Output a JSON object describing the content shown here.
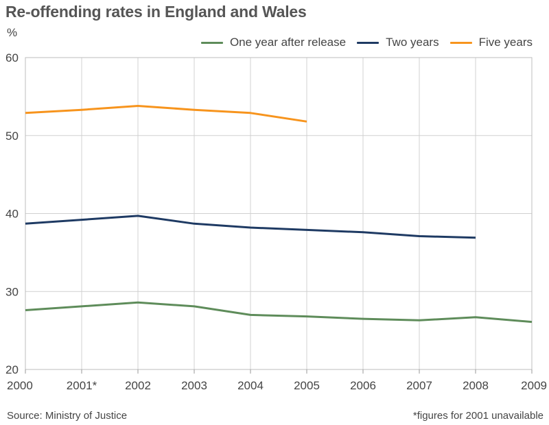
{
  "chart_data": {
    "type": "line",
    "title": "Re-offending rates in England and Wales",
    "ylabel": "%",
    "xlabel": "",
    "x": [
      "2000",
      "2001*",
      "2002",
      "2003",
      "2004",
      "2005",
      "2006",
      "2007",
      "2008",
      "2009"
    ],
    "ylim": [
      20,
      60
    ],
    "yticks": [
      20,
      30,
      40,
      50,
      60
    ],
    "grid": true,
    "legend_position": "top-right",
    "series": [
      {
        "name": "One year after release",
        "color": "#5e8c5a",
        "values": [
          27.6,
          28.1,
          28.6,
          28.1,
          27.0,
          26.8,
          26.5,
          26.3,
          26.7,
          26.1
        ]
      },
      {
        "name": "Two years",
        "color": "#1e3a63",
        "values": [
          38.7,
          39.2,
          39.7,
          38.7,
          38.2,
          37.9,
          37.6,
          37.1,
          36.9,
          null
        ]
      },
      {
        "name": "Five years",
        "color": "#f7941d",
        "values": [
          52.9,
          53.3,
          53.8,
          53.3,
          52.9,
          51.8,
          null,
          null,
          null,
          null
        ]
      }
    ]
  },
  "footer": {
    "source": "Source: Ministry of Justice",
    "note": "*figures for 2001 unavailable"
  }
}
